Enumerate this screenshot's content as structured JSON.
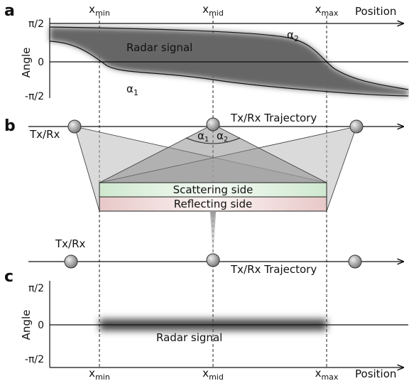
{
  "panels": {
    "a": {
      "label": "a",
      "x_axis_label": "Position",
      "y_axis_label": "Angle",
      "positions": [
        {
          "base": "x",
          "sub": "min"
        },
        {
          "base": "x",
          "sub": "mid"
        },
        {
          "base": "x",
          "sub": "max"
        }
      ],
      "angle_ticks": [
        "π/2",
        "0",
        "-π/2"
      ],
      "signal_label": "Radar signal",
      "curves": [
        {
          "base": "α",
          "sub": "2"
        },
        {
          "base": "α",
          "sub": "1"
        }
      ]
    },
    "b": {
      "label": "b",
      "antenna_label": "Tx/Rx",
      "trajectory_label": "Tx/Rx Trajectory",
      "angles": [
        {
          "base": "α",
          "sub": "1"
        },
        {
          "base": "α",
          "sub": "2"
        }
      ],
      "scattering_side": "Scattering side",
      "reflecting_side": "Reflecting side",
      "lower_antenna_label": "Tx/Rx",
      "lower_trajectory_label": "Tx/Rx Trajectory"
    },
    "c": {
      "label": "c",
      "x_axis_label": "Position",
      "y_axis_label": "Angle",
      "positions": [
        {
          "base": "x",
          "sub": "min"
        },
        {
          "base": "x",
          "sub": "mid"
        },
        {
          "base": "x",
          "sub": "max"
        }
      ],
      "angle_ticks": [
        "π/2",
        "0",
        "-π/2"
      ],
      "signal_label": "Radar signal"
    }
  }
}
